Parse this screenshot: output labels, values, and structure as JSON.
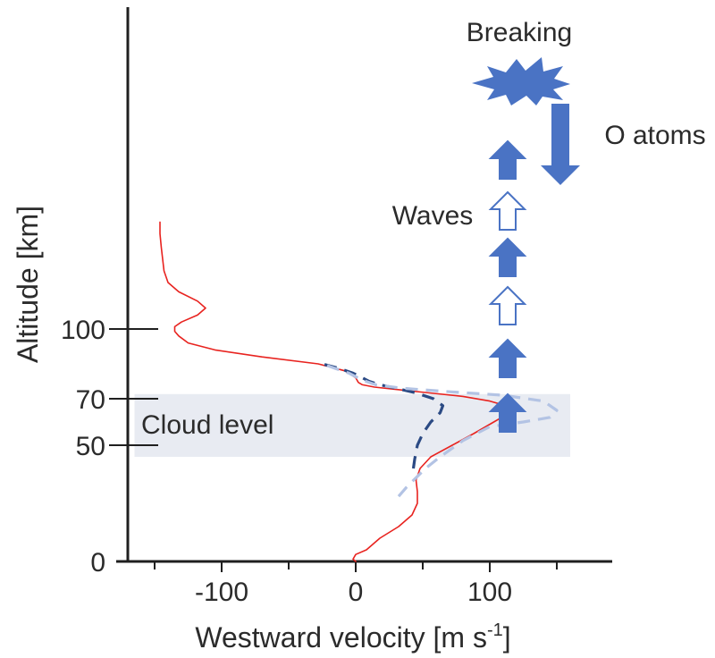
{
  "chart_data": {
    "type": "line",
    "title": "",
    "xlabel": "Westward velocity [m s",
    "xlabel_sup": "-1",
    "xlabel_end": "]",
    "ylabel": "Altitude [km]",
    "x_ticks": [
      {
        "value": -100,
        "label": "-100"
      },
      {
        "value": 0,
        "label": "0"
      },
      {
        "value": 100,
        "label": "100"
      }
    ],
    "y_ticks": [
      {
        "value": 0,
        "label": "0"
      },
      {
        "value": 50,
        "label": "50"
      },
      {
        "value": 70,
        "label": "70"
      },
      {
        "value": 100,
        "label": "100"
      }
    ],
    "cloud_band": {
      "label": "Cloud level",
      "x_range": [
        -165,
        160
      ],
      "y_range": [
        45,
        72
      ],
      "color": "#e8ebf2"
    },
    "series": [
      {
        "style": "solid",
        "color": "#e8231f",
        "points": [
          [
            0,
            0
          ],
          [
            -2,
            1
          ],
          [
            0,
            3
          ],
          [
            8,
            5
          ],
          [
            18,
            10
          ],
          [
            32,
            15
          ],
          [
            42,
            20
          ],
          [
            46,
            25
          ],
          [
            46,
            30
          ],
          [
            45,
            35
          ],
          [
            48,
            40
          ],
          [
            56,
            45
          ],
          [
            72,
            50
          ],
          [
            88,
            55
          ],
          [
            103,
            60
          ],
          [
            112,
            63
          ],
          [
            115,
            65
          ],
          [
            112,
            67
          ],
          [
            100,
            69
          ],
          [
            80,
            71
          ],
          [
            55,
            72.5
          ],
          [
            30,
            74
          ],
          [
            14,
            75
          ],
          [
            5,
            76
          ],
          [
            2,
            77
          ],
          [
            0,
            79
          ],
          [
            -8,
            82
          ],
          [
            -28,
            85
          ],
          [
            -70,
            88
          ],
          [
            -105,
            91
          ],
          [
            -125,
            94
          ],
          [
            -132,
            97
          ],
          [
            -135,
            99
          ],
          [
            -135,
            101
          ],
          [
            -130,
            103
          ],
          [
            -118,
            106
          ],
          [
            -112,
            109
          ],
          [
            -118,
            112
          ],
          [
            -132,
            116
          ],
          [
            -140,
            120
          ],
          [
            -143,
            125
          ],
          [
            -144,
            130
          ],
          [
            -145,
            135
          ],
          [
            -146,
            141
          ],
          [
            -146,
            146
          ]
        ]
      },
      {
        "style": "dashed",
        "color": "#2b4a84",
        "points": [
          [
            43,
            40
          ],
          [
            44,
            44
          ],
          [
            45,
            47
          ],
          [
            46,
            50
          ],
          [
            50,
            55
          ],
          [
            56,
            60
          ],
          [
            63,
            64
          ],
          [
            65,
            67
          ],
          [
            58,
            70
          ],
          [
            45,
            72.5
          ],
          [
            30,
            74.5
          ],
          [
            18,
            76
          ],
          [
            10,
            77.5
          ],
          [
            5,
            79
          ],
          [
            -2,
            81
          ],
          [
            -12,
            83
          ],
          [
            -25,
            85
          ]
        ]
      },
      {
        "style": "dashed",
        "color": "#b3c3e4",
        "points": [
          [
            32,
            28
          ],
          [
            38,
            32
          ],
          [
            45,
            36
          ],
          [
            52,
            40
          ],
          [
            63,
            45
          ],
          [
            80,
            52
          ],
          [
            100,
            58
          ],
          [
            125,
            60
          ],
          [
            145,
            62
          ],
          [
            150,
            65
          ],
          [
            140,
            69
          ],
          [
            110,
            71.5
          ],
          [
            70,
            73
          ],
          [
            35,
            74.5
          ],
          [
            15,
            76
          ],
          [
            5,
            78
          ],
          [
            -5,
            81
          ],
          [
            -15,
            83
          ],
          [
            -25,
            85
          ]
        ]
      }
    ],
    "annotations": {
      "breaking": "Breaking",
      "waves": "Waves",
      "o_atoms": "O atoms"
    },
    "colors": {
      "arrow_fill": "#4a73c4",
      "arrow_outline": "#4a73c4",
      "axis": "#1f1f1f"
    },
    "wave_arrows": [
      {
        "filled": true
      },
      {
        "filled": true
      },
      {
        "filled": false
      },
      {
        "filled": true
      },
      {
        "filled": false
      },
      {
        "filled": true
      }
    ]
  }
}
